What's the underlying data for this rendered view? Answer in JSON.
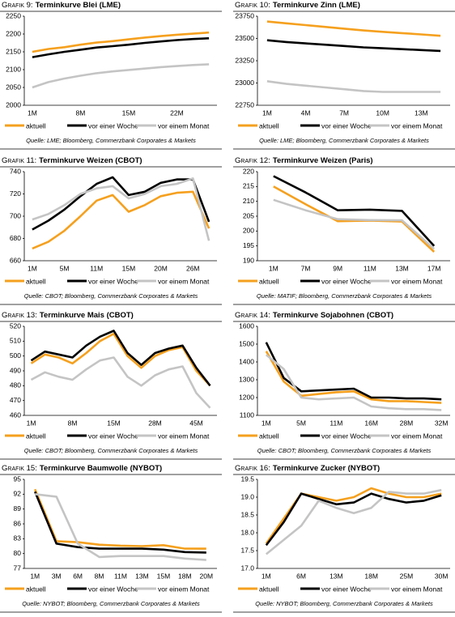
{
  "chart_data": [
    {
      "type": "line",
      "label": "Grafik 9:",
      "title": "Terminkurve Blei (LME)",
      "categories": [
        "1M",
        null,
        null,
        "8M",
        null,
        null,
        "15M",
        null,
        null,
        "22M",
        null,
        null
      ],
      "ylim": [
        2000,
        2250
      ],
      "yticks": [
        2000,
        2050,
        2100,
        2150,
        2200,
        2250
      ],
      "series": [
        {
          "name": "aktuell",
          "color": "#f5a01e",
          "values": [
            2150,
            2158,
            2163,
            2170,
            2176,
            2180,
            2185,
            2190,
            2194,
            2198,
            2201,
            2204
          ]
        },
        {
          "name": "vor einer Woche",
          "color": "#000000",
          "values": [
            2135,
            2143,
            2150,
            2156,
            2162,
            2166,
            2170,
            2175,
            2179,
            2183,
            2186,
            2188
          ]
        },
        {
          "name": "vor einem Monat",
          "color": "#c4c4c4",
          "values": [
            2050,
            2065,
            2075,
            2083,
            2090,
            2095,
            2099,
            2103,
            2107,
            2110,
            2113,
            2115
          ]
        }
      ],
      "source": "Quelle: LME; Bloomberg, Commerzbank Corporates & Markets"
    },
    {
      "type": "line",
      "label": "Grafik 10:",
      "title": "Terminkurve Zinn (LME)",
      "categories": [
        "1M",
        null,
        "4M",
        null,
        "7M",
        null,
        "10M",
        null,
        "13M",
        null
      ],
      "ylim": [
        22750,
        23750
      ],
      "yticks": [
        22750,
        23000,
        23250,
        23500,
        23750
      ],
      "series": [
        {
          "name": "aktuell",
          "color": "#f5a01e",
          "values": [
            23690,
            23670,
            23650,
            23630,
            23610,
            23590,
            23575,
            23560,
            23545,
            23530
          ]
        },
        {
          "name": "vor einer Woche",
          "color": "#000000",
          "values": [
            23480,
            23460,
            23445,
            23430,
            23415,
            23400,
            23390,
            23380,
            23370,
            23360
          ]
        },
        {
          "name": "vor einem Monat",
          "color": "#c4c4c4",
          "values": [
            23020,
            22990,
            22970,
            22950,
            22930,
            22910,
            22900,
            22900,
            22900,
            22900
          ]
        }
      ],
      "source": "Quelle: LME; Bloomberg, Commerzbank Corporates & Markets"
    },
    {
      "type": "line",
      "label": "Grafik 11:",
      "title": "Terminkurve Weizen (CBOT)",
      "categories": [
        "1M",
        null,
        "5M",
        null,
        "11M",
        null,
        "15M",
        null,
        "20M",
        null,
        "26M",
        null
      ],
      "ylim": [
        660,
        740
      ],
      "yticks": [
        660,
        680,
        700,
        720,
        740
      ],
      "series": [
        {
          "name": "aktuell",
          "color": "#f5a01e",
          "values": [
            671,
            677,
            687,
            700,
            714,
            719,
            704,
            710,
            718,
            721,
            722,
            689
          ]
        },
        {
          "name": "vor einer Woche",
          "color": "#000000",
          "values": [
            688,
            696,
            706,
            718,
            729,
            735,
            719,
            722,
            730,
            733,
            733,
            695
          ]
        },
        {
          "name": "vor einem Monat",
          "color": "#c4c4c4",
          "values": [
            697,
            702,
            710,
            720,
            725,
            727,
            716,
            720,
            727,
            729,
            734,
            678
          ]
        }
      ],
      "source": "Quelle: CBOT; Bloomberg, Commerzbank Corporates & Markets"
    },
    {
      "type": "line",
      "label": "Grafik 12:",
      "title": "Terminkurve Weizen (Paris)",
      "categories": [
        "1M",
        "7M",
        "9M",
        "11M",
        "13M",
        "17M"
      ],
      "ylim": [
        190,
        220
      ],
      "yticks": [
        190,
        195,
        200,
        205,
        210,
        215,
        220
      ],
      "series": [
        {
          "name": "aktuell",
          "color": "#f5a01e",
          "values": [
            215,
            209,
            203.3,
            203.5,
            203.2,
            193
          ]
        },
        {
          "name": "vor einer Woche",
          "color": "#000000",
          "values": [
            218.5,
            213,
            207,
            207.2,
            206.8,
            195
          ]
        },
        {
          "name": "vor einem Monat",
          "color": "#c4c4c4",
          "values": [
            210.5,
            207,
            204,
            203.7,
            203.6,
            194
          ]
        }
      ],
      "source": "Quelle: MATIF; Bloomberg, Commerzbank Corporates & Markets"
    },
    {
      "type": "line",
      "label": "Grafik 13:",
      "title": "Terminkurve Mais (CBOT)",
      "categories": [
        "1M",
        null,
        null,
        "8M",
        null,
        null,
        "15M",
        null,
        null,
        "28M",
        null,
        null,
        "45M",
        null
      ],
      "ylim": [
        460,
        520
      ],
      "yticks": [
        460,
        470,
        480,
        490,
        500,
        510,
        520
      ],
      "series": [
        {
          "name": "aktuell",
          "color": "#f5a01e",
          "values": [
            495,
            501,
            499,
            495,
            502,
            510,
            515,
            500,
            492,
            500,
            504,
            506,
            490,
            480
          ]
        },
        {
          "name": "vor einer Woche",
          "color": "#000000",
          "values": [
            497,
            503,
            501,
            499,
            507,
            513,
            517,
            502,
            494,
            502,
            505,
            507,
            492,
            480
          ]
        },
        {
          "name": "vor einem Monat",
          "color": "#c4c4c4",
          "values": [
            484,
            489,
            486,
            484,
            491,
            497,
            499,
            486,
            480,
            487,
            491,
            493,
            475,
            465
          ]
        }
      ],
      "source": "Quelle: CBOT; Bloomberg, Commerzbank Corporates & Markets"
    },
    {
      "type": "line",
      "label": "Grafik 14:",
      "title": "Terminkurve Sojabohnen (CBOT)",
      "categories": [
        "1M",
        null,
        "5M",
        null,
        "11M",
        null,
        "16M",
        null,
        "28M",
        null,
        "32M"
      ],
      "ylim": [
        1100,
        1600
      ],
      "yticks": [
        1100,
        1200,
        1300,
        1400,
        1500,
        1600
      ],
      "series": [
        {
          "name": "aktuell",
          "color": "#f5a01e",
          "values": [
            1460,
            1290,
            1210,
            1220,
            1230,
            1235,
            1190,
            1180,
            1180,
            1175,
            1170
          ]
        },
        {
          "name": "vor einer Woche",
          "color": "#000000",
          "values": [
            1510,
            1310,
            1235,
            1240,
            1245,
            1250,
            1200,
            1200,
            1195,
            1195,
            1190
          ]
        },
        {
          "name": "vor einem Monat",
          "color": "#c4c4c4",
          "values": [
            1440,
            1360,
            1200,
            1190,
            1195,
            1200,
            1150,
            1140,
            1135,
            1135,
            1130
          ]
        }
      ],
      "source": "Quelle: CBOT; Bloomberg, Commerzbank Corporates & Markets"
    },
    {
      "type": "line",
      "label": "Grafik 15:",
      "title": "Terminkurve Baumwolle (NYBOT)",
      "categories": [
        "1M",
        "3M",
        "6M",
        "8M",
        "11M",
        "13M",
        "15M",
        "18M",
        "20M"
      ],
      "ylim": [
        77,
        95
      ],
      "yticks": [
        77,
        80,
        83,
        86,
        89,
        92,
        95
      ],
      "series": [
        {
          "name": "aktuell",
          "color": "#f5a01e",
          "values": [
            93,
            82.5,
            82.3,
            81.8,
            81.6,
            81.5,
            81.7,
            81.0,
            81.0
          ]
        },
        {
          "name": "vor einer Woche",
          "color": "#000000",
          "values": [
            92.5,
            82.0,
            81.3,
            81.0,
            81.0,
            81.0,
            80.8,
            80.3,
            80.2
          ]
        },
        {
          "name": "vor einem Monat",
          "color": "#c4c4c4",
          "values": [
            92.0,
            91.5,
            82.0,
            79.3,
            79.5,
            79.5,
            79.5,
            79.0,
            78.7
          ]
        }
      ],
      "source": "Quelle: NYBOT; Bloomberg, Commerzbank Corporates & Markets"
    },
    {
      "type": "line",
      "label": "Grafik 16:",
      "title": "Terminkurve Zucker (NYBOT)",
      "categories": [
        "1M",
        null,
        "6M",
        null,
        "13M",
        null,
        "18M",
        null,
        "25M",
        null,
        "30M"
      ],
      "ylim": [
        17.0,
        19.5
      ],
      "yticks": [
        {
          "value": 17.0,
          "label": "17.0"
        },
        17.5,
        {
          "value": 18.0,
          "label": "18.0"
        },
        18.5,
        {
          "value": 19.0,
          "label": "19.0"
        },
        19.5
      ],
      "series": [
        {
          "name": "aktuell",
          "color": "#f5a01e",
          "values": [
            17.7,
            18.4,
            19.1,
            19.0,
            18.9,
            19.0,
            19.25,
            19.1,
            19.0,
            19.0,
            19.1
          ]
        },
        {
          "name": "vor einer Woche",
          "color": "#000000",
          "values": [
            17.65,
            18.3,
            19.1,
            18.95,
            18.8,
            18.85,
            19.1,
            18.95,
            18.85,
            18.9,
            19.05
          ]
        },
        {
          "name": "vor einem Monat",
          "color": "#c4c4c4",
          "values": [
            17.4,
            17.8,
            18.2,
            18.9,
            18.7,
            18.55,
            18.7,
            19.15,
            19.1,
            19.1,
            19.2
          ]
        }
      ],
      "source": "Quelle: NYBOT; Bloomberg, Commerzbank Corporates & Markets"
    }
  ]
}
